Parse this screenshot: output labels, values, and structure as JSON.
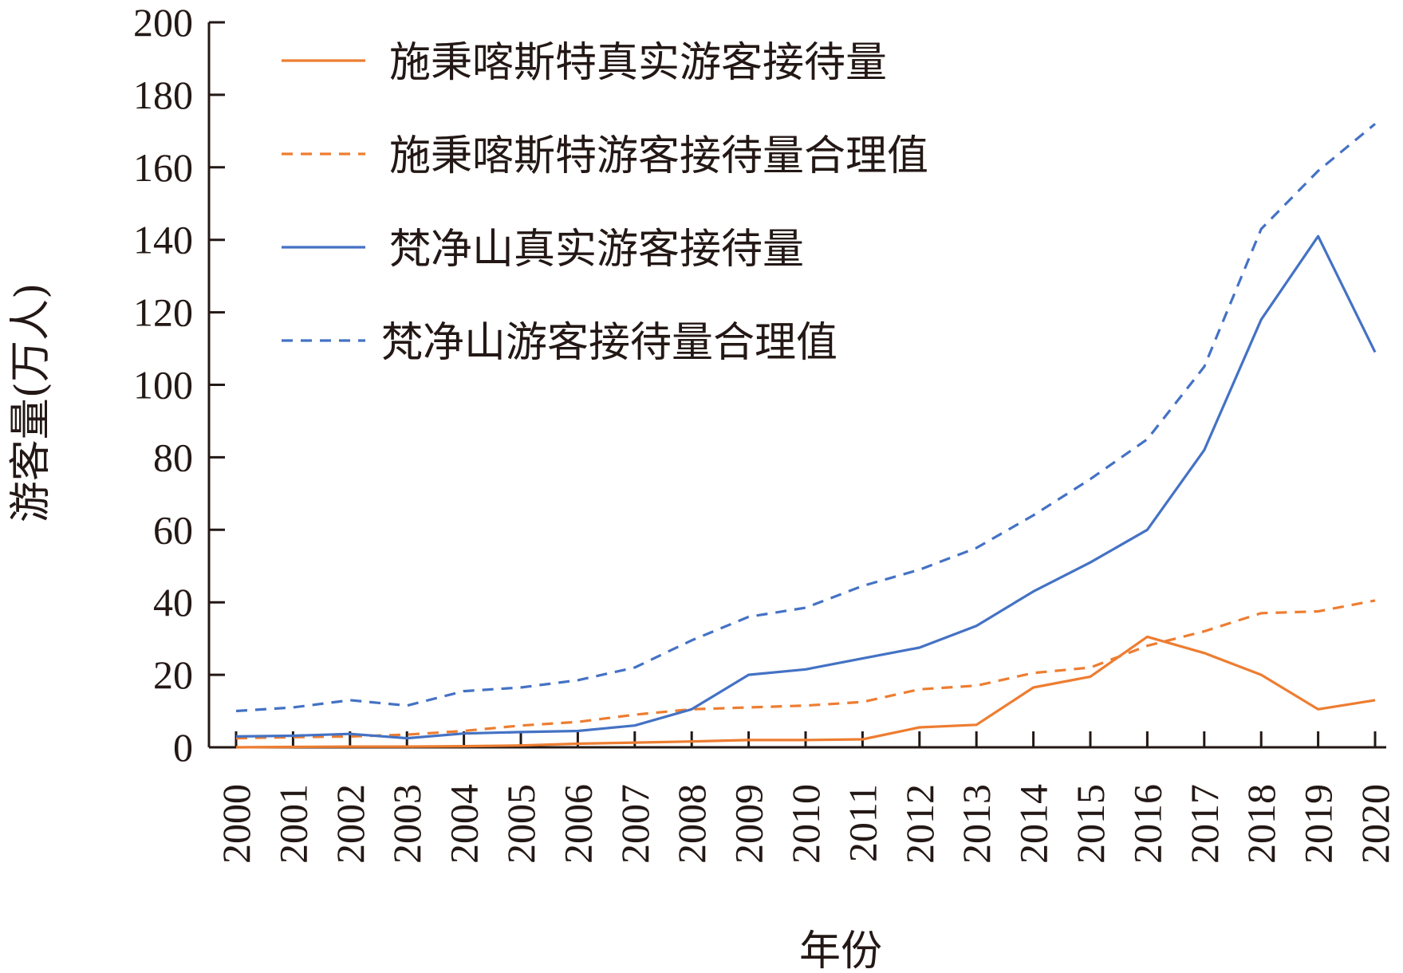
{
  "chart_data": {
    "type": "line",
    "xlabel": "年份",
    "ylabel": "游客量(万人)",
    "ylim": [
      0,
      200
    ],
    "yticks": [
      0,
      20,
      40,
      60,
      80,
      100,
      120,
      140,
      160,
      180,
      200
    ],
    "x": [
      "2000",
      "2001",
      "2002",
      "2003",
      "2004",
      "2005",
      "2006",
      "2007",
      "2008",
      "2009",
      "2010",
      "2011",
      "2012",
      "2013",
      "2014",
      "2015",
      "2016",
      "2017",
      "2018",
      "2019",
      "2020"
    ],
    "grid": false,
    "legend_position": "top-left",
    "series": [
      {
        "name": "施秉喀斯特真实游客接待量",
        "color": "#ED7D31",
        "dash": false,
        "values": [
          0,
          0.1,
          0.2,
          0.2,
          0.3,
          0.5,
          1.0,
          1.3,
          1.6,
          2.0,
          2.0,
          2.2,
          5.5,
          6.2,
          16.5,
          19.5,
          30.5,
          26.0,
          20.0,
          10.5,
          13.0
        ]
      },
      {
        "name": "施秉喀斯特游客接待量合理值",
        "color": "#ED7D31",
        "dash": true,
        "values": [
          2.5,
          2.8,
          3.0,
          3.5,
          4.5,
          6.0,
          7.0,
          9.0,
          10.5,
          11.0,
          11.5,
          12.5,
          16.0,
          17.0,
          20.5,
          22.0,
          28.0,
          32.0,
          37.0,
          37.5,
          40.5
        ]
      },
      {
        "name": "梵净山真实游客接待量",
        "color": "#4472C4",
        "dash": false,
        "values": [
          3.0,
          3.2,
          3.7,
          2.5,
          3.8,
          4.2,
          4.5,
          6.0,
          10.5,
          20.0,
          21.5,
          24.5,
          27.5,
          33.5,
          43.0,
          51.0,
          60.0,
          82.0,
          118.0,
          141.0,
          109.0
        ]
      },
      {
        "name": "梵净山游客接待量合理值",
        "color": "#4472C4",
        "dash": true,
        "values": [
          10.0,
          11.0,
          13.0,
          11.5,
          15.5,
          16.5,
          18.5,
          22.0,
          29.5,
          36.0,
          38.5,
          44.5,
          49.0,
          55.0,
          64.0,
          74.0,
          85.0,
          105.0,
          143.0,
          159.0,
          172.0
        ]
      }
    ]
  }
}
